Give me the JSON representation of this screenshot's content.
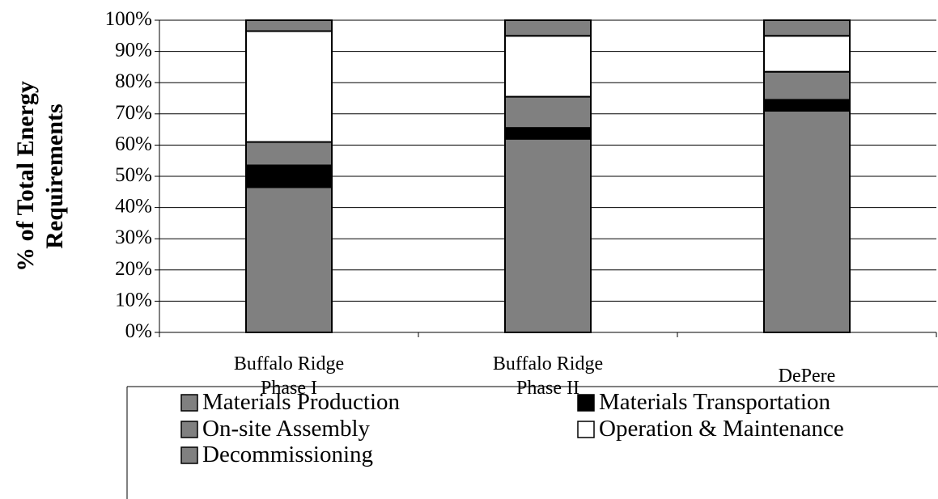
{
  "chart_data": {
    "type": "stacked_bar",
    "ylabel": "% of Total Energy\nRequirements",
    "categories": [
      "Buffalo Ridge\nPhase I",
      "Buffalo Ridge\nPhase II",
      "DePere"
    ],
    "series": [
      {
        "name": "Materials Production",
        "color": "#808080",
        "values": [
          46.5,
          62,
          71
        ]
      },
      {
        "name": "Materials Transportation",
        "color": "#000000",
        "values": [
          7,
          3.5,
          3.5
        ]
      },
      {
        "name": "On-site Assembly",
        "color": "#808080",
        "values": [
          7.5,
          10,
          9
        ]
      },
      {
        "name": "Operation & Maintenance",
        "color": "#ffffff",
        "values": [
          35.5,
          19.5,
          11.5
        ]
      },
      {
        "name": "Decommissioning",
        "color": "#808080",
        "values": [
          3.5,
          5,
          5
        ]
      }
    ],
    "ylim": [
      0,
      100
    ],
    "yticks": [
      {
        "value": 0,
        "label": "0%"
      },
      {
        "value": 10,
        "label": "10%"
      },
      {
        "value": 20,
        "label": "20%"
      },
      {
        "value": 30,
        "label": "30%"
      },
      {
        "value": 40,
        "label": "40%"
      },
      {
        "value": 50,
        "label": "50%"
      },
      {
        "value": 60,
        "label": "60%"
      },
      {
        "value": 70,
        "label": "70%"
      },
      {
        "value": 80,
        "label": "80%"
      },
      {
        "value": 90,
        "label": "90%"
      },
      {
        "value": 100,
        "label": "100%"
      }
    ],
    "grid": true,
    "legend": "bottom"
  }
}
